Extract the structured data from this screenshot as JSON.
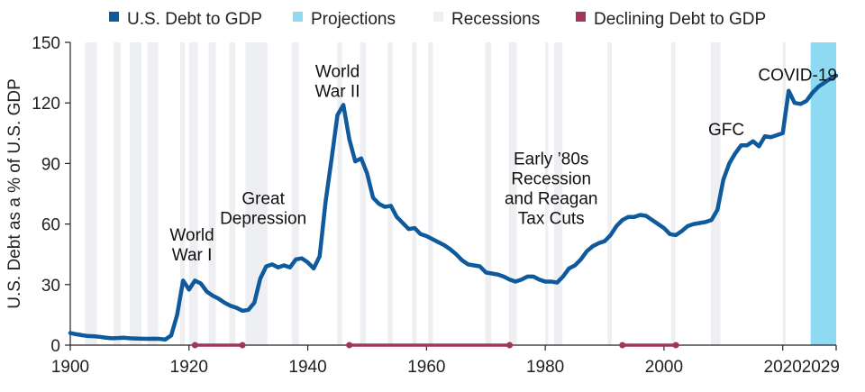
{
  "chart_data": {
    "type": "line",
    "title": "",
    "xlabel": "",
    "ylabel": "U.S. Debt as a % of U.S. GDP",
    "xlim": [
      1900,
      2029
    ],
    "ylim": [
      0,
      150
    ],
    "y_ticks": [
      0,
      30,
      60,
      90,
      120,
      150
    ],
    "x_ticks": [
      1900,
      1920,
      1940,
      1960,
      1980,
      2000,
      2020,
      2029
    ],
    "x_tick_labels": [
      "1900",
      "1920",
      "1940",
      "1960",
      "1980",
      "2000",
      "2020",
      "2029"
    ],
    "grid": false,
    "legend_position": "top",
    "legend": [
      {
        "label": "U.S. Debt to GDP",
        "color": "#0f5a9c",
        "marker": "square"
      },
      {
        "label": "Projections",
        "color": "#8fdaf3",
        "marker": "square"
      },
      {
        "label": "Recessions",
        "color": "#eeeff2",
        "marker": "square"
      },
      {
        "label": "Declining Debt to GDP",
        "color": "#a1365a",
        "marker": "square"
      }
    ],
    "series": [
      {
        "name": "U.S. Debt to GDP",
        "color": "#0f5a9c",
        "points": [
          [
            1900,
            6
          ],
          [
            1901,
            5.4
          ],
          [
            1902,
            4.9
          ],
          [
            1903,
            4.5
          ],
          [
            1904,
            4.4
          ],
          [
            1905,
            4.1
          ],
          [
            1906,
            3.7
          ],
          [
            1907,
            3.4
          ],
          [
            1908,
            3.5
          ],
          [
            1909,
            3.7
          ],
          [
            1910,
            3.4
          ],
          [
            1911,
            3.3
          ],
          [
            1912,
            3.2
          ],
          [
            1913,
            3.1
          ],
          [
            1914,
            3.2
          ],
          [
            1915,
            3.1
          ],
          [
            1916,
            2.8
          ],
          [
            1917,
            4.8
          ],
          [
            1918,
            15
          ],
          [
            1919,
            32
          ],
          [
            1920,
            27.5
          ],
          [
            1921,
            32
          ],
          [
            1922,
            30.5
          ],
          [
            1923,
            26.5
          ],
          [
            1924,
            24.5
          ],
          [
            1925,
            23
          ],
          [
            1926,
            21
          ],
          [
            1927,
            19.5
          ],
          [
            1928,
            18.5
          ],
          [
            1929,
            17
          ],
          [
            1930,
            17.5
          ],
          [
            1931,
            21
          ],
          [
            1932,
            33
          ],
          [
            1933,
            39
          ],
          [
            1934,
            40
          ],
          [
            1935,
            38.5
          ],
          [
            1936,
            39.5
          ],
          [
            1937,
            38.5
          ],
          [
            1938,
            42.5
          ],
          [
            1939,
            43
          ],
          [
            1940,
            41
          ],
          [
            1941,
            38
          ],
          [
            1942,
            44
          ],
          [
            1943,
            71
          ],
          [
            1944,
            92
          ],
          [
            1945,
            114
          ],
          [
            1946,
            119
          ],
          [
            1947,
            102
          ],
          [
            1948,
            91
          ],
          [
            1949,
            92.5
          ],
          [
            1950,
            85
          ],
          [
            1951,
            73
          ],
          [
            1952,
            70
          ],
          [
            1953,
            68.5
          ],
          [
            1954,
            69
          ],
          [
            1955,
            63.5
          ],
          [
            1956,
            60.5
          ],
          [
            1957,
            57.5
          ],
          [
            1958,
            58
          ],
          [
            1959,
            55
          ],
          [
            1960,
            54
          ],
          [
            1961,
            52.5
          ],
          [
            1962,
            51
          ],
          [
            1963,
            49.5
          ],
          [
            1964,
            47.5
          ],
          [
            1965,
            45
          ],
          [
            1966,
            42
          ],
          [
            1967,
            40
          ],
          [
            1968,
            39.5
          ],
          [
            1969,
            39
          ],
          [
            1970,
            36
          ],
          [
            1971,
            35.5
          ],
          [
            1972,
            35
          ],
          [
            1973,
            34
          ],
          [
            1974,
            32.5
          ],
          [
            1975,
            31.5
          ],
          [
            1976,
            32.5
          ],
          [
            1977,
            34
          ],
          [
            1978,
            34
          ],
          [
            1979,
            32.5
          ],
          [
            1980,
            31.5
          ],
          [
            1981,
            31.5
          ],
          [
            1982,
            31
          ],
          [
            1983,
            34
          ],
          [
            1984,
            38
          ],
          [
            1985,
            39.5
          ],
          [
            1986,
            42.5
          ],
          [
            1987,
            46.5
          ],
          [
            1988,
            49
          ],
          [
            1989,
            50.5
          ],
          [
            1990,
            51.5
          ],
          [
            1991,
            54.5
          ],
          [
            1992,
            59
          ],
          [
            1993,
            62
          ],
          [
            1994,
            63.5
          ],
          [
            1995,
            63.5
          ],
          [
            1996,
            64.5
          ],
          [
            1997,
            64
          ],
          [
            1998,
            62
          ],
          [
            1999,
            60
          ],
          [
            2000,
            58
          ],
          [
            2001,
            55
          ],
          [
            2002,
            54.5
          ],
          [
            2003,
            56.5
          ],
          [
            2004,
            59
          ],
          [
            2005,
            60
          ],
          [
            2006,
            60.5
          ],
          [
            2007,
            61
          ],
          [
            2008,
            62
          ],
          [
            2009,
            67
          ],
          [
            2010,
            82
          ],
          [
            2011,
            90
          ],
          [
            2012,
            95
          ],
          [
            2013,
            99
          ],
          [
            2014,
            99
          ],
          [
            2015,
            101
          ],
          [
            2016,
            98.5
          ],
          [
            2017,
            103.5
          ],
          [
            2018,
            103
          ],
          [
            2019,
            104
          ],
          [
            2020,
            105
          ],
          [
            2021,
            126
          ],
          [
            2022,
            120
          ],
          [
            2023,
            119.5
          ],
          [
            2024,
            121
          ],
          [
            2025,
            125
          ],
          [
            2026,
            128
          ],
          [
            2027,
            130
          ],
          [
            2028,
            132
          ],
          [
            2029,
            133.5
          ]
        ]
      }
    ],
    "projections": [
      [
        2025,
        2029
      ]
    ],
    "recessions": [
      [
        1902.5,
        1904.5
      ],
      [
        1907.3,
        1908.5
      ],
      [
        1910,
        1912
      ],
      [
        1913,
        1914.8
      ],
      [
        1918.5,
        1919.3
      ],
      [
        1920,
        1921.5
      ],
      [
        1923.3,
        1924.5
      ],
      [
        1926.8,
        1927.8
      ],
      [
        1929.5,
        1933.2
      ],
      [
        1937.3,
        1938.5
      ],
      [
        1945,
        1945.8
      ],
      [
        1948.8,
        1949.8
      ],
      [
        1953.5,
        1954.3
      ],
      [
        1957.6,
        1958.3
      ],
      [
        1960.3,
        1961.1
      ],
      [
        1969.9,
        1970.9
      ],
      [
        1973.9,
        1975.2
      ],
      [
        1980,
        1980.5
      ],
      [
        1981.5,
        1982.9
      ],
      [
        1990.5,
        1991.2
      ],
      [
        2001.2,
        2001.9
      ],
      [
        2007.9,
        2009.5
      ],
      [
        2020,
        2020.5
      ]
    ],
    "declining_periods": [
      [
        1921,
        1929
      ],
      [
        1947,
        1974
      ],
      [
        1993,
        2002
      ]
    ],
    "annotations": [
      {
        "lines": [
          "World",
          "War I"
        ],
        "x": 1920.5,
        "y": 42
      },
      {
        "lines": [
          "Great",
          "Depression"
        ],
        "x": 1932.5,
        "y": 60
      },
      {
        "lines": [
          "World",
          "War II"
        ],
        "x": 1945,
        "y": 123
      },
      {
        "lines": [
          "Early ’80s",
          "Recession",
          "and Reagan",
          "Tax Cuts"
        ],
        "x": 1981,
        "y": 60
      },
      {
        "lines": [
          "GFC"
        ],
        "x": 2010.5,
        "y": 104
      },
      {
        "lines": [
          "COVID-19"
        ],
        "x": 2022.5,
        "y": 131
      }
    ]
  }
}
